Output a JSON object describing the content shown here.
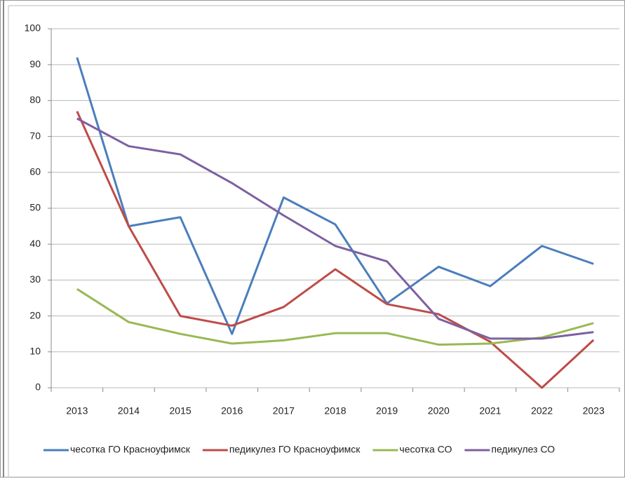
{
  "chart_data": {
    "type": "line",
    "categories": [
      "2013",
      "2014",
      "2015",
      "2016",
      "2017",
      "2018",
      "2019",
      "2020",
      "2021",
      "2022",
      "2023"
    ],
    "series": [
      {
        "name": "чесотка ГО Красноуфимск",
        "color": "#4a7ebb",
        "values": [
          92,
          45,
          47.5,
          15,
          53,
          45.5,
          23.5,
          33.7,
          28.3,
          39.5,
          34.5
        ]
      },
      {
        "name": "педикулез ГО Красноуфимск",
        "color": "#be4b48",
        "values": [
          77,
          45,
          20,
          17.3,
          22.5,
          33,
          23.3,
          20.5,
          12.8,
          0,
          13.3
        ]
      },
      {
        "name": "чесотка СО",
        "color": "#98b954",
        "values": [
          27.5,
          18.3,
          15,
          12.3,
          13.2,
          15.2,
          15.2,
          12,
          12.3,
          14,
          18
        ]
      },
      {
        "name": "педикулез СО",
        "color": "#7d60a0",
        "values": [
          75,
          67.3,
          65,
          57,
          48,
          39.5,
          35.2,
          19.2,
          13.7,
          13.7,
          15.5
        ]
      }
    ],
    "ylim": [
      0,
      100
    ],
    "yticks": [
      0,
      10,
      20,
      30,
      40,
      50,
      60,
      70,
      80,
      90,
      100
    ],
    "grid": true,
    "legend": "bottom"
  }
}
